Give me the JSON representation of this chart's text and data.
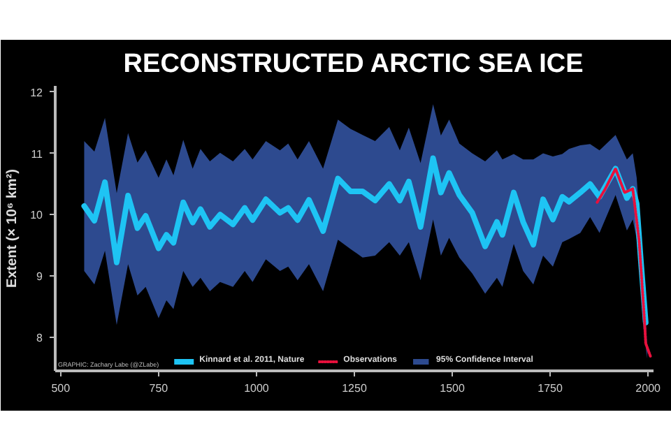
{
  "chart_data": {
    "type": "line",
    "title": "RECONSTRUCTED ARCTIC SEA ICE",
    "ylabel": "Extent (× 10⁶ km²)",
    "xlim": [
      486,
      2014
    ],
    "ylim": [
      7.45,
      12.1
    ],
    "xticks": [
      500,
      750,
      1000,
      1250,
      1500,
      1750,
      2000
    ],
    "yticks": [
      8,
      9,
      10,
      11,
      12
    ],
    "grid": false,
    "legend": "bottom",
    "marker": "none",
    "annotations": [
      "GRAPHIC: Zachary Labe (@ZLabe)"
    ],
    "series": [
      {
        "name": "95% Confidence Interval",
        "type": "area",
        "color": "#2d4a8f",
        "x": [
          560,
          586,
          613,
          643,
          672,
          696,
          717,
          750,
          770,
          788,
          813,
          837,
          857,
          881,
          907,
          940,
          970,
          990,
          1024,
          1060,
          1081,
          1105,
          1134,
          1170,
          1208,
          1240,
          1271,
          1303,
          1339,
          1366,
          1389,
          1419,
          1451,
          1471,
          1492,
          1518,
          1551,
          1584,
          1614,
          1628,
          1657,
          1681,
          1707,
          1732,
          1757,
          1781,
          1798,
          1827,
          1852,
          1876,
          1917,
          1946,
          1961,
          1971,
          1982,
          1988,
          1998
        ],
        "lower": [
          9.08,
          8.86,
          9.41,
          8.2,
          9.19,
          8.68,
          8.82,
          8.31,
          8.6,
          8.46,
          9.08,
          8.82,
          8.97,
          8.75,
          8.9,
          8.82,
          9.08,
          8.9,
          9.27,
          9.08,
          9.15,
          8.93,
          9.19,
          8.75,
          9.59,
          9.44,
          9.3,
          9.33,
          9.55,
          9.33,
          9.55,
          8.93,
          9.92,
          9.33,
          9.62,
          9.3,
          9.04,
          8.71,
          8.97,
          8.82,
          9.52,
          9.08,
          8.86,
          9.33,
          9.15,
          9.55,
          9.6,
          9.7,
          9.96,
          9.7,
          10.32,
          9.74,
          9.92,
          9.6,
          8.8,
          8.16,
          7.65
        ],
        "values": [
          null,
          null,
          null,
          null,
          null,
          null,
          null,
          null,
          null,
          null,
          null,
          null,
          null,
          null,
          null,
          null,
          null,
          null,
          null,
          null,
          null,
          null,
          null,
          null,
          null,
          null,
          null,
          null,
          null,
          null,
          null,
          null,
          null,
          null,
          null,
          null,
          null,
          null,
          null,
          null,
          null,
          null,
          null,
          null,
          null,
          null,
          null,
          null,
          null,
          null,
          null,
          null,
          null,
          null,
          null,
          null,
          null
        ],
        "upper": [
          11.2,
          11.03,
          11.58,
          10.35,
          11.33,
          10.85,
          11.05,
          10.6,
          10.9,
          10.64,
          11.22,
          10.75,
          11.07,
          10.87,
          11.01,
          10.87,
          11.07,
          10.9,
          11.2,
          11.05,
          11.16,
          10.9,
          11.2,
          10.75,
          11.55,
          11.4,
          11.3,
          11.2,
          11.43,
          11.05,
          11.42,
          10.84,
          11.8,
          11.29,
          11.55,
          11.16,
          11.0,
          10.87,
          11.05,
          10.9,
          10.99,
          10.9,
          10.9,
          11.0,
          10.95,
          10.99,
          11.07,
          11.13,
          11.15,
          11.05,
          11.3,
          10.9,
          11.0,
          10.6,
          9.6,
          8.9,
          7.85
        ]
      },
      {
        "name": "Kinnard et al. 2011, Nature",
        "color": "#1ec4f4",
        "line_style": "solid",
        "x": [
          560,
          586,
          613,
          643,
          672,
          696,
          717,
          750,
          770,
          788,
          813,
          837,
          857,
          881,
          907,
          940,
          970,
          990,
          1024,
          1060,
          1081,
          1105,
          1134,
          1170,
          1208,
          1240,
          1271,
          1303,
          1339,
          1366,
          1389,
          1419,
          1451,
          1471,
          1492,
          1518,
          1551,
          1584,
          1614,
          1628,
          1657,
          1681,
          1707,
          1732,
          1757,
          1781,
          1798,
          1827,
          1852,
          1876,
          1917,
          1946,
          1961,
          1971,
          1982,
          1994
        ],
        "values": [
          10.14,
          9.9,
          10.53,
          9.22,
          10.31,
          9.78,
          9.98,
          9.45,
          9.67,
          9.54,
          10.2,
          9.87,
          10.09,
          9.8,
          10.0,
          9.84,
          10.11,
          9.91,
          10.25,
          10.03,
          10.11,
          9.91,
          10.24,
          9.73,
          10.59,
          10.38,
          10.38,
          10.23,
          10.5,
          10.23,
          10.54,
          9.8,
          10.92,
          10.36,
          10.68,
          10.32,
          10.03,
          9.48,
          9.88,
          9.67,
          10.36,
          9.88,
          9.51,
          10.25,
          9.92,
          10.29,
          10.21,
          10.36,
          10.5,
          10.29,
          10.75,
          10.27,
          10.42,
          10.18,
          9.22,
          8.24
        ]
      },
      {
        "name": "Observations",
        "color": "#e8103c",
        "line_style": "dotted",
        "x": [
          1870,
          1890,
          1917,
          1940,
          1961,
          1977,
          1991,
          1994,
          2006
        ],
        "values": [
          10.2,
          10.41,
          10.75,
          10.36,
          10.42,
          9.59,
          8.27,
          7.9,
          7.69
        ]
      }
    ]
  }
}
